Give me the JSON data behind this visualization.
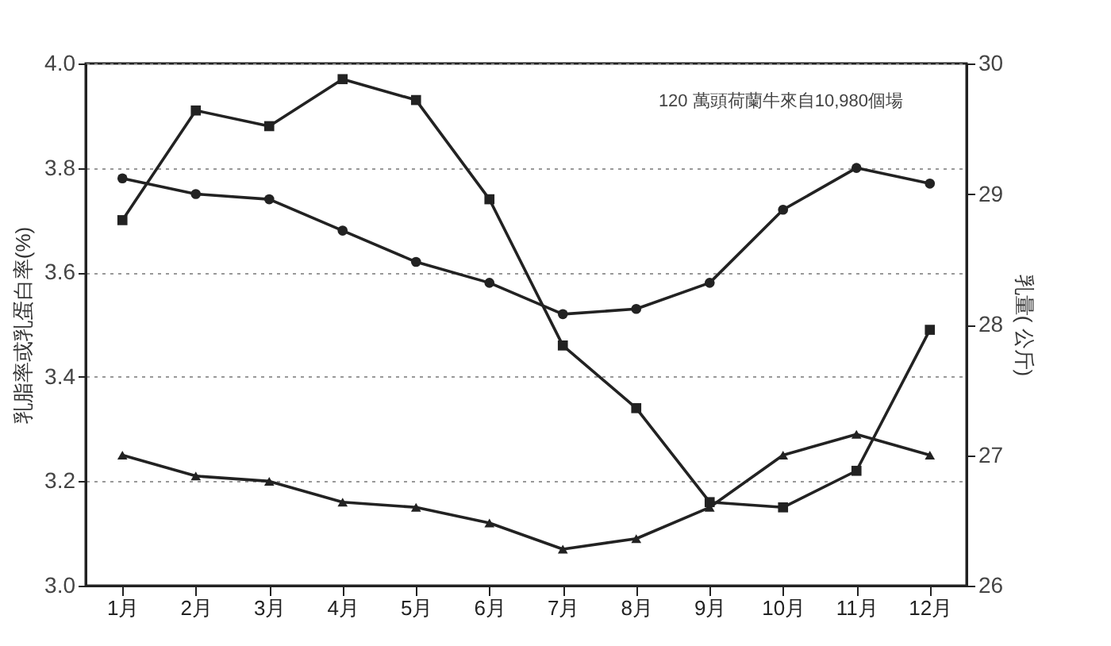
{
  "chart_data": {
    "type": "line",
    "ylabel": "乳脂率或乳蛋白率(%)",
    "y2label": "乳量( 公斤)",
    "annotations": [
      "120 萬頭荷蘭牛來自10,980個場"
    ],
    "categories": [
      "1月",
      "2月",
      "3月",
      "4月",
      "5月",
      "6月",
      "7月",
      "8月",
      "9月",
      "10月",
      "11月",
      "12月"
    ],
    "series": [
      {
        "color": "#222222",
        "marker": "circle",
        "values": [
          3.78,
          3.75,
          3.74,
          3.68,
          3.62,
          3.58,
          3.52,
          3.53,
          3.58,
          3.72,
          3.8,
          3.77
        ]
      },
      {
        "color": "#222222",
        "marker": "triangle",
        "values": [
          3.25,
          3.21,
          3.2,
          3.16,
          3.15,
          3.12,
          3.07,
          3.09,
          3.15,
          3.25,
          3.29,
          3.25
        ]
      },
      {
        "color": "#222222",
        "marker": "square",
        "axis": "y2",
        "values": [
          28.8,
          29.64,
          29.52,
          29.88,
          29.72,
          28.96,
          27.84,
          27.36,
          26.64,
          26.6,
          26.88,
          27.96
        ]
      }
    ],
    "ylim": [
      3.0,
      4.0
    ],
    "yticks": [
      {
        "value": 3,
        "label": "3.0"
      },
      3.2,
      3.4,
      3.6,
      3.8,
      {
        "value": 4,
        "label": "4.0"
      }
    ],
    "y2lim": [
      26,
      30
    ],
    "y2ticks": [
      26,
      27,
      28,
      29,
      30
    ],
    "grid": "y",
    "legend": false,
    "line_style": "solid"
  }
}
